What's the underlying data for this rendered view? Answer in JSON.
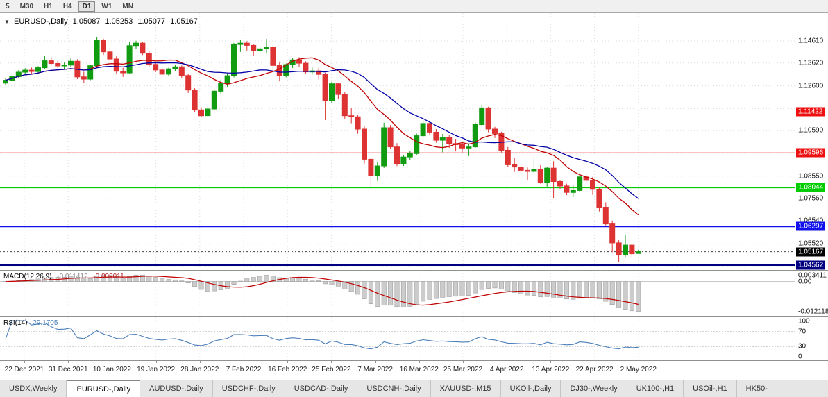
{
  "toolbar": {
    "timeframes": [
      "5",
      "M30",
      "H1",
      "H4",
      "D1",
      "W1",
      "MN"
    ],
    "active": "D1"
  },
  "chart": {
    "marker": "▼",
    "symbol_label": "EURUSD-,Daily",
    "ohlc": {
      "open": "1.05087",
      "high": "1.05253",
      "low": "1.05077",
      "close": "1.05167"
    },
    "y_axis": {
      "grid_labels": [
        "1.14610",
        "1.13620",
        "1.12600",
        "1.10590",
        "1.08550",
        "1.07560",
        "1.06540",
        "1.05520"
      ]
    },
    "hlines": [
      {
        "price": 1.11422,
        "label": "1.11422",
        "color": "#ee1111",
        "width": 1
      },
      {
        "price": 1.09596,
        "label": "1.09596",
        "color": "#ee1111",
        "width": 1
      },
      {
        "price": 1.08044,
        "label": "1.08044",
        "color": "#00cc00",
        "width": 2
      },
      {
        "price": 1.06297,
        "label": "1.06297",
        "color": "#1111ee",
        "width": 2
      },
      {
        "price": 1.04562,
        "label": "1.04562",
        "color": "#000080",
        "width": 2
      }
    ],
    "current_price": {
      "price": 1.05167,
      "label": "1.05167",
      "color": "#000000"
    }
  },
  "macd": {
    "label": "MACD(12,26,9)",
    "value_main": "-0.011412",
    "value_signal": "-0.009011",
    "params": [
      12,
      26,
      9
    ],
    "axis": [
      "0.003411",
      "0.00",
      "-0.012118"
    ]
  },
  "rsi": {
    "label": "RSI(14)",
    "value": "29.1705",
    "period": 14,
    "levels": [
      70,
      30
    ],
    "axis": [
      "100",
      "70",
      "30",
      "0"
    ]
  },
  "tabs": {
    "items": [
      {
        "label": "USDX,Weekly",
        "active": false
      },
      {
        "label": "EURUSD-,Daily",
        "active": true
      },
      {
        "label": "AUDUSD-,Daily",
        "active": false
      },
      {
        "label": "USDCHF-,Daily",
        "active": false
      },
      {
        "label": "USDCAD-,Daily",
        "active": false
      },
      {
        "label": "USDCNH-,Daily",
        "active": false
      },
      {
        "label": "XAUUSD-,M15",
        "active": false
      },
      {
        "label": "UKOil-,Daily",
        "active": false
      },
      {
        "label": "DJ30-,Weekly",
        "active": false
      },
      {
        "label": "UK100-,H1",
        "active": false
      },
      {
        "label": "USOil-,H1",
        "active": false
      },
      {
        "label": "HK50-",
        "active": false
      }
    ]
  },
  "chart_data": {
    "type": "candlestick",
    "symbol": "EURUSD-",
    "timeframe": "Daily",
    "y_range": [
      1.043,
      1.1505
    ],
    "grid_prices": [
      1.1461,
      1.1362,
      1.126,
      1.1158,
      1.1059,
      1.0957,
      1.0855,
      1.0756,
      1.0654,
      1.0552,
      1.045
    ],
    "x_tick_labels": [
      "22 Dec 2021",
      "31 Dec 2021",
      "10 Jan 2022",
      "19 Jan 2022",
      "28 Jan 2022",
      "7 Feb 2022",
      "16 Feb 2022",
      "25 Feb 2022",
      "7 Mar 2022",
      "16 Mar 2022",
      "25 Mar 2022",
      "4 Apr 2022",
      "13 Apr 2022",
      "22 Apr 2022",
      "2 May 2022"
    ],
    "colors": {
      "up": "#119b11",
      "down": "#dd3333",
      "macd_bar": "#cccccc",
      "macd_bar_border": "#9e9e9e",
      "macd_signal": "#c00000",
      "rsi_line": "#4a7eb8",
      "grid": "#dcdcdc"
    },
    "overlays": [
      {
        "name": "ma-fast",
        "type": "sma",
        "period": 13,
        "color": "#c00000"
      },
      {
        "name": "ma-slow",
        "type": "sma",
        "period": 21,
        "color": "#0000a8"
      }
    ],
    "candles": [
      [
        1.1272,
        1.1296,
        1.1262,
        1.1285
      ],
      [
        1.1285,
        1.1312,
        1.1278,
        1.1301
      ],
      [
        1.1301,
        1.133,
        1.1293,
        1.1321
      ],
      [
        1.1321,
        1.1339,
        1.1308,
        1.133
      ],
      [
        1.133,
        1.1342,
        1.1315,
        1.1324
      ],
      [
        1.1324,
        1.1348,
        1.1317,
        1.1341
      ],
      [
        1.1341,
        1.1395,
        1.1335,
        1.1372
      ],
      [
        1.1372,
        1.1388,
        1.1352,
        1.136
      ],
      [
        1.136,
        1.1372,
        1.134,
        1.1349
      ],
      [
        1.1349,
        1.1364,
        1.1336,
        1.1353
      ],
      [
        1.1353,
        1.1383,
        1.1345,
        1.137
      ],
      [
        1.137,
        1.1379,
        1.129,
        1.13
      ],
      [
        1.13,
        1.1323,
        1.1272,
        1.129
      ],
      [
        1.129,
        1.1355,
        1.1285,
        1.135
      ],
      [
        1.135,
        1.1478,
        1.1342,
        1.1465
      ],
      [
        1.1465,
        1.1471,
        1.1398,
        1.1412
      ],
      [
        1.1412,
        1.143,
        1.1365,
        1.138
      ],
      [
        1.138,
        1.1392,
        1.1314,
        1.1325
      ],
      [
        1.1325,
        1.1341,
        1.13,
        1.1318
      ],
      [
        1.1318,
        1.1455,
        1.1312,
        1.144
      ],
      [
        1.144,
        1.1462,
        1.1425,
        1.1451
      ],
      [
        1.1451,
        1.1458,
        1.1398,
        1.1406
      ],
      [
        1.1406,
        1.1415,
        1.1345,
        1.1356
      ],
      [
        1.1356,
        1.1368,
        1.1322,
        1.1331
      ],
      [
        1.1331,
        1.1346,
        1.1301,
        1.1312
      ],
      [
        1.1312,
        1.1341,
        1.1305,
        1.1336
      ],
      [
        1.1336,
        1.1353,
        1.1324,
        1.1345
      ],
      [
        1.1345,
        1.1351,
        1.1295,
        1.1306
      ],
      [
        1.1306,
        1.1314,
        1.1228,
        1.1241
      ],
      [
        1.1241,
        1.1249,
        1.1141,
        1.1152
      ],
      [
        1.1152,
        1.1164,
        1.112,
        1.1126
      ],
      [
        1.1126,
        1.1168,
        1.1122,
        1.1156
      ],
      [
        1.1156,
        1.1244,
        1.115,
        1.1236
      ],
      [
        1.1236,
        1.1288,
        1.1222,
        1.1271
      ],
      [
        1.1271,
        1.1316,
        1.1255,
        1.1305
      ],
      [
        1.1305,
        1.1452,
        1.1298,
        1.1445
      ],
      [
        1.1445,
        1.1465,
        1.1412,
        1.1451
      ],
      [
        1.1451,
        1.146,
        1.1418,
        1.1441
      ],
      [
        1.1441,
        1.1448,
        1.1396,
        1.1418
      ],
      [
        1.1418,
        1.1439,
        1.1402,
        1.1426
      ],
      [
        1.1426,
        1.147,
        1.1404,
        1.1432
      ],
      [
        1.1432,
        1.144,
        1.1332,
        1.1351
      ],
      [
        1.1351,
        1.1368,
        1.128,
        1.1306
      ],
      [
        1.1306,
        1.136,
        1.1298,
        1.1355
      ],
      [
        1.1355,
        1.1384,
        1.134,
        1.1376
      ],
      [
        1.1376,
        1.1388,
        1.1345,
        1.1361
      ],
      [
        1.1361,
        1.137,
        1.1312,
        1.1322
      ],
      [
        1.1322,
        1.1346,
        1.131,
        1.1327
      ],
      [
        1.1327,
        1.1341,
        1.1288,
        1.1311
      ],
      [
        1.1311,
        1.1318,
        1.1106,
        1.1192
      ],
      [
        1.1192,
        1.1278,
        1.1184,
        1.1269
      ],
      [
        1.1269,
        1.1274,
        1.1202,
        1.1221
      ],
      [
        1.1221,
        1.1232,
        1.111,
        1.1126
      ],
      [
        1.1126,
        1.116,
        1.1092,
        1.1121
      ],
      [
        1.1121,
        1.113,
        1.1045,
        1.1066
      ],
      [
        1.1066,
        1.1078,
        1.0912,
        1.0931
      ],
      [
        1.0931,
        1.0938,
        1.0806,
        1.0856
      ],
      [
        1.0856,
        1.092,
        1.0834,
        1.0901
      ],
      [
        1.0901,
        1.1095,
        1.0892,
        1.1072
      ],
      [
        1.1072,
        1.1084,
        1.0976,
        1.0986
      ],
      [
        1.0986,
        1.1003,
        1.09,
        1.0912
      ],
      [
        1.0912,
        1.0948,
        1.0901,
        1.0941
      ],
      [
        1.0941,
        1.0968,
        1.0926,
        1.0956
      ],
      [
        1.0956,
        1.1046,
        1.095,
        1.1036
      ],
      [
        1.1036,
        1.1105,
        1.1028,
        1.1091
      ],
      [
        1.1091,
        1.1098,
        1.1038,
        1.1052
      ],
      [
        1.1052,
        1.1066,
        1.1005,
        1.1016
      ],
      [
        1.1016,
        1.1044,
        1.0962,
        1.1029
      ],
      [
        1.1029,
        1.1038,
        1.0982,
        1.1001
      ],
      [
        1.1001,
        1.1022,
        1.0966,
        1.0996
      ],
      [
        1.0996,
        1.1008,
        1.0962,
        1.0981
      ],
      [
        1.0981,
        1.1002,
        1.0945,
        1.0986
      ],
      [
        1.0986,
        1.1096,
        1.0982,
        1.1086
      ],
      [
        1.1086,
        1.1172,
        1.1078,
        1.1161
      ],
      [
        1.1161,
        1.1166,
        1.1052,
        1.1066
      ],
      [
        1.1066,
        1.1076,
        1.1026,
        1.1046
      ],
      [
        1.1046,
        1.1054,
        1.0961,
        1.0971
      ],
      [
        1.0971,
        1.0986,
        1.0896,
        1.0906
      ],
      [
        1.0906,
        1.0938,
        1.0874,
        1.0896
      ],
      [
        1.0896,
        1.0906,
        1.0866,
        1.0881
      ],
      [
        1.0881,
        1.0894,
        1.0836,
        1.0876
      ],
      [
        1.0876,
        1.0934,
        1.087,
        1.0886
      ],
      [
        1.0886,
        1.0904,
        1.0821,
        1.0826
      ],
      [
        1.0826,
        1.0896,
        1.0808,
        1.0891
      ],
      [
        1.0891,
        1.0922,
        1.0758,
        1.0831
      ],
      [
        1.0831,
        1.0838,
        1.0796,
        1.0811
      ],
      [
        1.0811,
        1.0821,
        1.077,
        1.0782
      ],
      [
        1.0782,
        1.0816,
        1.0761,
        1.0791
      ],
      [
        1.0791,
        1.0868,
        1.0784,
        1.0852
      ],
      [
        1.0852,
        1.0866,
        1.0822,
        1.0836
      ],
      [
        1.0836,
        1.0852,
        1.0771,
        1.0796
      ],
      [
        1.0796,
        1.0804,
        1.0697,
        1.0716
      ],
      [
        1.0716,
        1.0738,
        1.0634,
        1.0641
      ],
      [
        1.0641,
        1.0656,
        1.0514,
        1.0556
      ],
      [
        1.0556,
        1.0568,
        1.0471,
        1.0502
      ],
      [
        1.0502,
        1.0594,
        1.0492,
        1.0546
      ],
      [
        1.0546,
        1.0551,
        1.0491,
        1.0507
      ],
      [
        1.05087,
        1.05253,
        1.05077,
        1.05167
      ]
    ]
  }
}
